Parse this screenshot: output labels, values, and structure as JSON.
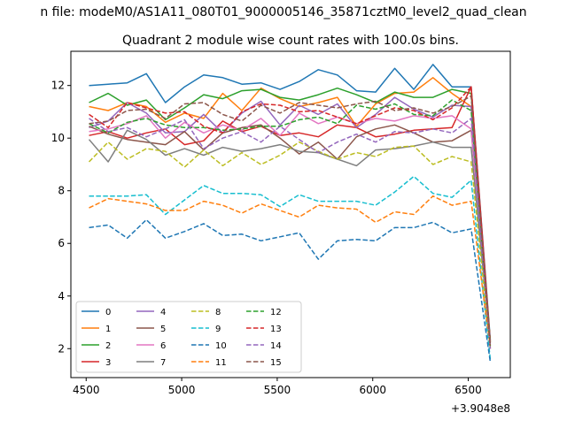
{
  "chart_data": {
    "type": "line",
    "suptitle": "n file: modeM0/AS1A11_080T01_9000005146_35871cztM0_level2_quad_clean",
    "title": "Quadrant 2 module wise count rates with 100.0s bins.",
    "xlabel": "",
    "ylabel": "",
    "x_offset_label": "+3.9048e8",
    "xlim": [
      4420,
      6720
    ],
    "ylim": [
      0.9,
      13.3
    ],
    "xticks": [
      4500,
      5000,
      5500,
      6000,
      6500
    ],
    "xtick_labels": [
      "4500",
      "5000",
      "5500",
      "6000",
      "6500"
    ],
    "yticks": [
      2,
      4,
      6,
      8,
      10,
      12
    ],
    "ytick_labels": [
      "2",
      "4",
      "6",
      "8",
      "10",
      "12"
    ],
    "grid": false,
    "legend_position": "lower-left",
    "x": [
      4515,
      4615,
      4715,
      4815,
      4915,
      5015,
      5115,
      5215,
      5315,
      5415,
      5515,
      5615,
      5715,
      5815,
      5915,
      6015,
      6115,
      6215,
      6315,
      6415,
      6515,
      6615
    ],
    "series": [
      {
        "name": "0",
        "color": "#1f77b4",
        "dash": "solid",
        "values": [
          12.0,
          12.05,
          12.1,
          12.45,
          11.35,
          11.95,
          12.4,
          12.3,
          12.05,
          12.1,
          11.85,
          12.15,
          12.6,
          12.4,
          11.8,
          11.75,
          12.65,
          11.85,
          12.8,
          11.95,
          11.95,
          2.35
        ]
      },
      {
        "name": "1",
        "color": "#ff7f0e",
        "dash": "solid",
        "values": [
          11.2,
          11.05,
          11.35,
          11.2,
          10.6,
          10.95,
          10.75,
          11.7,
          11.05,
          11.9,
          11.5,
          11.2,
          11.35,
          11.55,
          10.45,
          11.3,
          11.7,
          11.75,
          12.3,
          11.7,
          11.2,
          2.3
        ]
      },
      {
        "name": "2",
        "color": "#2ca02c",
        "dash": "solid",
        "values": [
          11.35,
          11.7,
          11.25,
          11.45,
          10.7,
          11.15,
          11.65,
          11.5,
          11.8,
          11.85,
          11.55,
          11.45,
          11.65,
          11.9,
          11.65,
          11.35,
          11.75,
          11.55,
          11.55,
          11.85,
          11.7,
          2.25
        ]
      },
      {
        "name": "3",
        "color": "#d62728",
        "dash": "solid",
        "values": [
          10.1,
          10.25,
          10.0,
          10.2,
          10.35,
          9.75,
          9.9,
          10.65,
          10.25,
          10.45,
          10.1,
          10.2,
          10.05,
          10.5,
          10.4,
          10.05,
          10.15,
          10.3,
          10.35,
          10.4,
          11.95,
          2.25
        ]
      },
      {
        "name": "4",
        "color": "#9467bd",
        "dash": "solid",
        "values": [
          10.4,
          10.65,
          11.35,
          10.95,
          10.2,
          10.25,
          10.9,
          10.2,
          10.95,
          11.4,
          10.5,
          11.25,
          10.9,
          11.3,
          10.4,
          10.9,
          11.55,
          11.1,
          10.8,
          11.25,
          11.2,
          2.2
        ]
      },
      {
        "name": "5",
        "color": "#8c564b",
        "dash": "solid",
        "values": [
          10.45,
          10.15,
          9.95,
          9.85,
          9.75,
          10.25,
          9.55,
          10.2,
          10.4,
          10.5,
          10.0,
          9.4,
          9.85,
          9.2,
          10.05,
          10.35,
          10.5,
          10.2,
          9.85,
          9.9,
          10.3,
          2.3
        ]
      },
      {
        "name": "6",
        "color": "#e377c2",
        "dash": "solid",
        "values": [
          10.25,
          10.35,
          10.55,
          10.85,
          10.0,
          10.6,
          10.2,
          10.5,
          10.3,
          10.75,
          10.1,
          10.95,
          10.55,
          10.8,
          10.55,
          10.75,
          10.65,
          10.85,
          10.75,
          10.85,
          10.35,
          2.2
        ]
      },
      {
        "name": "7",
        "color": "#7f7f7f",
        "dash": "solid",
        "values": [
          9.95,
          9.1,
          10.3,
          9.95,
          9.35,
          9.6,
          9.35,
          9.65,
          9.5,
          9.6,
          9.75,
          9.5,
          9.45,
          9.2,
          8.95,
          9.55,
          9.6,
          9.7,
          9.85,
          9.65,
          9.65,
          2.15
        ]
      },
      {
        "name": "8",
        "color": "#bcbd22",
        "dash": "dashed",
        "values": [
          9.1,
          9.85,
          9.2,
          9.6,
          9.5,
          8.9,
          9.55,
          8.95,
          9.45,
          9.0,
          9.35,
          9.85,
          9.5,
          9.2,
          9.45,
          9.3,
          9.65,
          9.7,
          9.0,
          9.3,
          9.1,
          2.0
        ]
      },
      {
        "name": "9",
        "color": "#17becf",
        "dash": "dashed",
        "values": [
          7.8,
          7.8,
          7.8,
          7.85,
          7.1,
          7.65,
          8.2,
          7.9,
          7.9,
          7.85,
          7.4,
          7.85,
          7.6,
          7.6,
          7.6,
          7.45,
          7.95,
          8.55,
          7.9,
          7.75,
          8.4,
          1.6
        ]
      },
      {
        "name": "10",
        "color": "#1f77b4",
        "dash": "dashed",
        "values": [
          6.6,
          6.7,
          6.2,
          6.9,
          6.2,
          6.45,
          6.75,
          6.3,
          6.35,
          6.1,
          6.25,
          6.4,
          5.4,
          6.1,
          6.15,
          6.1,
          6.6,
          6.6,
          6.8,
          6.4,
          6.55,
          1.5
        ]
      },
      {
        "name": "11",
        "color": "#ff7f0e",
        "dash": "dashed",
        "values": [
          7.35,
          7.7,
          7.6,
          7.5,
          7.25,
          7.25,
          7.6,
          7.45,
          7.15,
          7.5,
          7.25,
          7.0,
          7.45,
          7.35,
          7.3,
          6.8,
          7.2,
          7.1,
          7.8,
          7.45,
          7.6,
          2.05
        ]
      },
      {
        "name": "12",
        "color": "#2ca02c",
        "dash": "dashed",
        "values": [
          10.55,
          10.2,
          10.6,
          10.75,
          10.5,
          10.4,
          10.4,
          10.3,
          10.35,
          10.45,
          10.45,
          10.7,
          10.8,
          10.55,
          11.25,
          11.1,
          11.3,
          10.9,
          10.85,
          11.45,
          11.05,
          2.1
        ]
      },
      {
        "name": "13",
        "color": "#d62728",
        "dash": "dashed",
        "values": [
          10.9,
          10.4,
          11.35,
          11.15,
          10.95,
          11.0,
          10.45,
          10.2,
          11.0,
          11.3,
          11.25,
          11.0,
          11.05,
          10.8,
          10.55,
          10.85,
          11.15,
          11.05,
          10.7,
          11.15,
          11.95,
          2.0
        ]
      },
      {
        "name": "14",
        "color": "#9467bd",
        "dash": "dashed",
        "values": [
          10.75,
          10.25,
          10.4,
          10.05,
          10.35,
          10.7,
          9.6,
          10.0,
          10.25,
          9.85,
          10.45,
          9.95,
          9.45,
          9.85,
          10.15,
          9.85,
          10.25,
          10.2,
          10.35,
          10.2,
          10.75,
          2.0
        ]
      },
      {
        "name": "15",
        "color": "#8c564b",
        "dash": "dashed",
        "values": [
          10.55,
          10.65,
          11.05,
          11.1,
          10.75,
          11.3,
          11.35,
          10.9,
          10.65,
          11.25,
          10.95,
          11.35,
          11.25,
          11.15,
          11.3,
          11.4,
          11.05,
          11.15,
          10.95,
          11.2,
          11.6,
          2.1
        ]
      }
    ]
  }
}
